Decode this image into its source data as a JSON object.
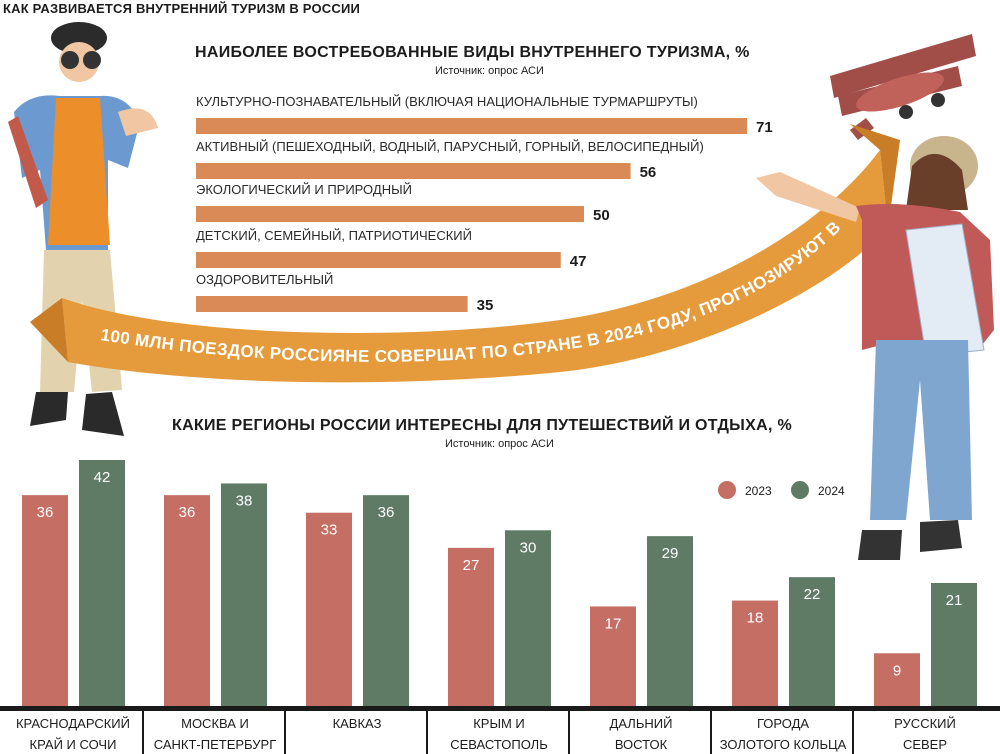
{
  "header": {
    "title": "КАК РАЗВИВАЕТСЯ ВНУТРЕННИЙ ТУРИЗМ В РОССИИ"
  },
  "banner": {
    "text": "100 МЛН ПОЕЗДОК РОССИЯНЕ СОВЕРШАТ ПО СТРАНЕ В 2024 ГОДУ, ПРОГНОЗИРУЮТ В АТОР"
  },
  "colors": {
    "top_bar": "#d98a57",
    "y2023": "#c56e63",
    "y2024": "#5f7b66",
    "banner": "#e59a3c"
  },
  "chart_data": [
    {
      "type": "bar",
      "orientation": "horizontal",
      "title": "НАИБОЛЕЕ ВОСТРЕБОВАННЫЕ ВИДЫ ВНУТРЕННЕГО ТУРИЗМА, %",
      "subtitle": "Источник: опрос АСИ",
      "categories": [
        "КУЛЬТУРНО-ПОЗНАВАТЕЛЬНЫЙ (ВКЛЮЧАЯ НАЦИОНАЛЬНЫЕ ТУРМАРШРУТЫ)",
        "АКТИВНЫЙ (ПЕШЕХОДНЫЙ, ВОДНЫЙ, ПАРУСНЫЙ, ГОРНЫЙ, ВЕЛОСИПЕДНЫЙ)",
        "ЭКОЛОГИЧЕСКИЙ И ПРИРОДНЫЙ",
        "ДЕТСКИЙ, СЕМЕЙНЫЙ, ПАТРИОТИЧЕСКИЙ",
        "ОЗДОРОВИТЕЛЬНЫЙ"
      ],
      "values": [
        71,
        56,
        50,
        47,
        35
      ]
    },
    {
      "type": "bar",
      "orientation": "vertical",
      "title": "КАКИЕ РЕГИОНЫ РОССИИ ИНТЕРЕСНЫ ДЛЯ ПУТЕШЕСТВИЙ И ОТДЫХА, %",
      "subtitle": "Источник: опрос АСИ",
      "categories": [
        [
          "КРАСНОДАРСКИЙ",
          "КРАЙ И СОЧИ"
        ],
        [
          "МОСКВА И",
          "САНКТ-ПЕТЕРБУРГ"
        ],
        [
          "КАВКАЗ"
        ],
        [
          "КРЫМ И",
          "СЕВАСТОПОЛЬ"
        ],
        [
          "ДАЛЬНИЙ",
          "ВОСТОК"
        ],
        [
          "ГОРОДА",
          "ЗОЛОТОГО КОЛЬЦА"
        ],
        [
          "РУССКИЙ",
          "СЕВЕР"
        ]
      ],
      "series": [
        {
          "name": "2023",
          "values": [
            36,
            36,
            33,
            27,
            17,
            18,
            9
          ]
        },
        {
          "name": "2024",
          "values": [
            42,
            38,
            36,
            30,
            29,
            22,
            21
          ]
        }
      ],
      "legend": "top-right"
    }
  ]
}
